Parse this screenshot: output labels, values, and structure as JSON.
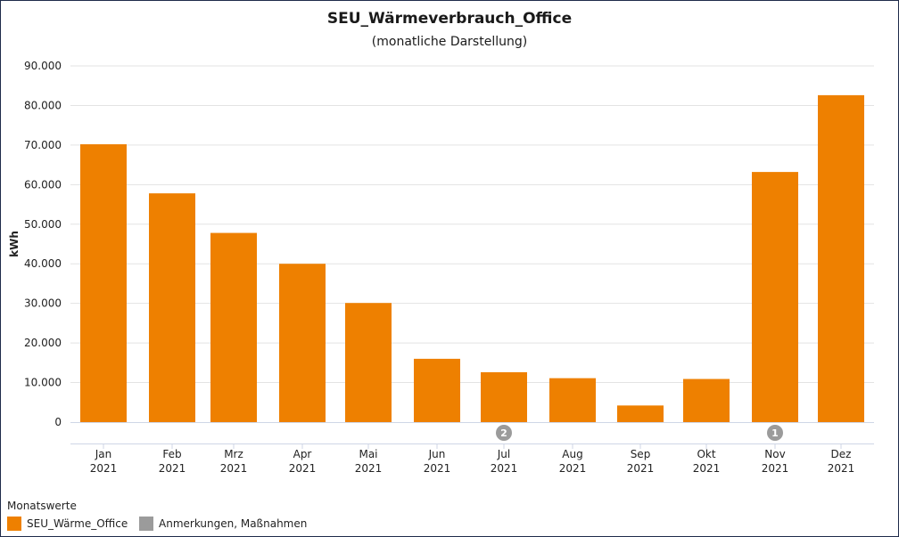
{
  "chart_data": {
    "type": "bar",
    "title": "SEU_Wärmeverbrauch_Office",
    "subtitle": "(monatliche Darstellung)",
    "ylabel": "kWh",
    "xlabel": "",
    "ylim": [
      0,
      90000
    ],
    "yticks": [
      0,
      10000,
      20000,
      30000,
      40000,
      50000,
      60000,
      70000,
      80000,
      90000
    ],
    "ytick_labels": [
      "0",
      "10.000",
      "20.000",
      "30.000",
      "40.000",
      "50.000",
      "60.000",
      "70.000",
      "80.000",
      "90.000"
    ],
    "grid": true,
    "categories": [
      "Jan",
      "Feb",
      "Mrz",
      "Apr",
      "Mai",
      "Jun",
      "Jul",
      "Aug",
      "Sep",
      "Okt",
      "Nov",
      "Dez"
    ],
    "category_years": [
      "2021",
      "2021",
      "2021",
      "2021",
      "2021",
      "2021",
      "2021",
      "2021",
      "2021",
      "2021",
      "2021",
      "2021"
    ],
    "series": [
      {
        "name": "SEU_Wärme_Office",
        "color": "#ee8000",
        "values": [
          70200,
          57800,
          47800,
          40000,
          30100,
          16000,
          12600,
          11100,
          4200,
          10900,
          63200,
          82600
        ]
      }
    ],
    "annotations": [
      {
        "category": "Jul",
        "label": "2"
      },
      {
        "category": "Nov",
        "label": "1"
      }
    ],
    "legend": {
      "title": "Monatswerte",
      "placement": "bottom-left",
      "items": [
        {
          "label": "SEU_Wärme_Office",
          "color": "#ee8000"
        },
        {
          "label": "Anmerkungen, Maßnahmen",
          "color": "#9b9b9b"
        }
      ]
    }
  }
}
